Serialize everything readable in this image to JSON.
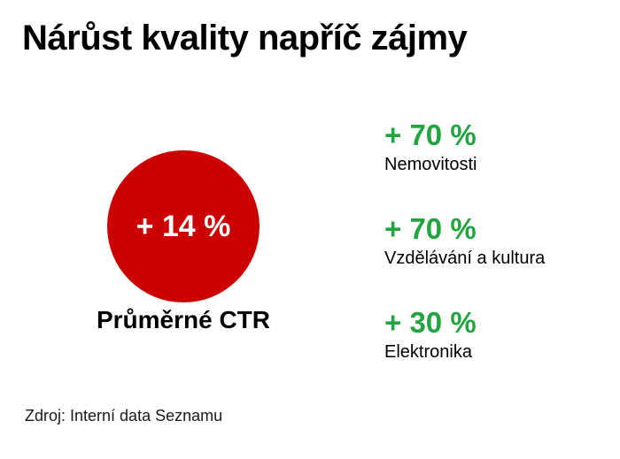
{
  "slide": {
    "title": "Nárůst kvality napříč zájmy",
    "source": "Zdroj: Interní data Seznamu"
  },
  "highlight": {
    "value": "+ 14 %",
    "label": "Průměrné CTR"
  },
  "stats": [
    {
      "value": "+ 70 %",
      "label": "Nemovitosti"
    },
    {
      "value": "+ 70 %",
      "label": "Vzdělávání a kultura"
    },
    {
      "value": "+ 30 %",
      "label": "Elektronika"
    }
  ],
  "chart_data": {
    "type": "table",
    "title": "Nárůst kvality napříč zájmy",
    "categories": [
      "Průměrné CTR",
      "Nemovitosti",
      "Vzdělávání a kultura",
      "Elektronika"
    ],
    "values": [
      14,
      70,
      70,
      30
    ],
    "unit": "%",
    "annotations": [
      "Zdroj: Interní data Seznamu"
    ]
  },
  "colors": {
    "background": "#ffffff",
    "text": "#000000",
    "accent_red": "#cc0000",
    "accent_green": "#22a440",
    "kpi_text": "#ffffff"
  }
}
